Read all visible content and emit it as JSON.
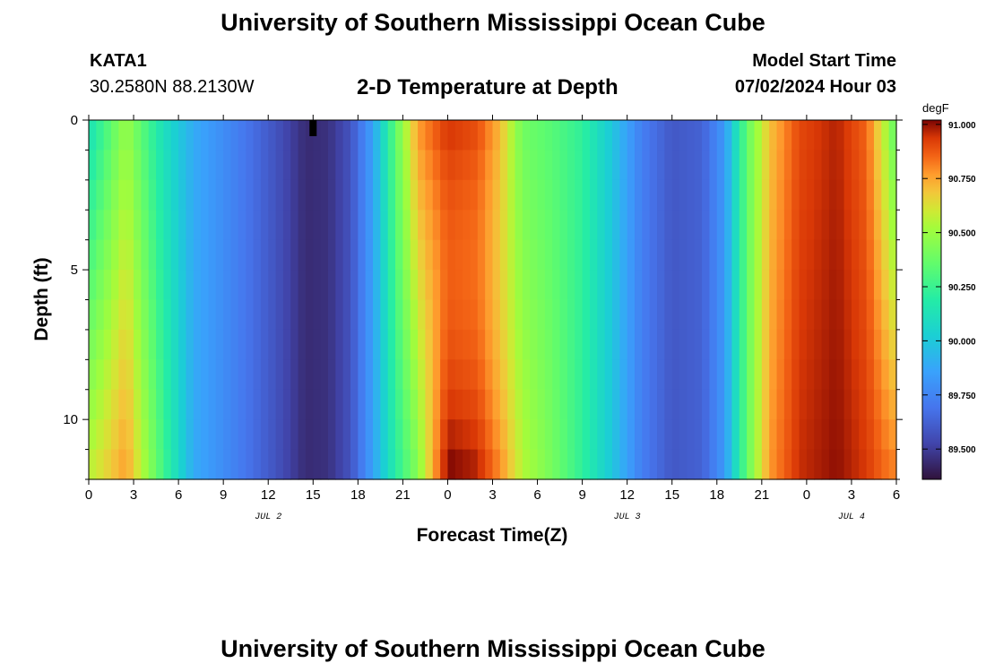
{
  "header": {
    "title": "University of Southern Mississippi Ocean Cube",
    "station": "KATA1",
    "coordinates": "30.2580N  88.2130W",
    "subtitle": "2-D Temperature at Depth",
    "model_start_label": "Model Start Time",
    "model_start_value": "07/02/2024 Hour 03"
  },
  "footer": {
    "title": "University of Southern Mississippi Ocean Cube"
  },
  "chart_data": {
    "type": "heatmap",
    "xlabel": "Forecast Time(Z)",
    "ylabel": "Depth (ft)",
    "x_range_hours": [
      0,
      54
    ],
    "x_tick_labels": [
      "0",
      "3",
      "6",
      "9",
      "12",
      "15",
      "18",
      "21",
      "0",
      "3",
      "6",
      "9",
      "12",
      "15",
      "18",
      "21",
      "0",
      "3",
      "6"
    ],
    "date_labels": [
      {
        "label": "JUL 2",
        "hour": 12
      },
      {
        "label": "JUL 3",
        "hour": 36
      },
      {
        "label": "JUL 4",
        "hour": 51
      }
    ],
    "y_range_ft": [
      0,
      12
    ],
    "y_inverted": true,
    "y_tick_labels": [
      "0",
      "5",
      "10"
    ],
    "colorbar": {
      "unit": "degF",
      "min": 89.36,
      "max": 91.02,
      "tick_labels": [
        "89.500",
        "89.750",
        "90.000",
        "90.250",
        "90.500",
        "90.750",
        "91.000"
      ],
      "tick_values": [
        89.5,
        89.75,
        90.0,
        90.25,
        90.5,
        90.75,
        91.0
      ]
    },
    "marker": {
      "hour": 15,
      "depth_ft": 0
    }
  }
}
